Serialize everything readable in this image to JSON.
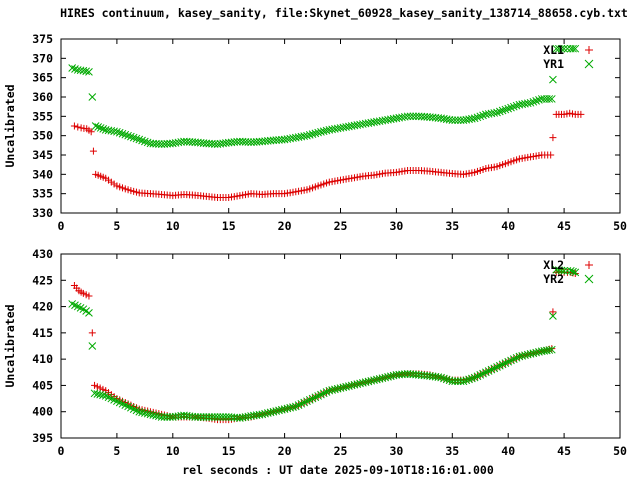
{
  "chart_data": {
    "type": "scatter",
    "title": "HIRES continuum, kasey_sanity, file:Skynet_60928_kasey_sanity_138714_88658.cyb.txt",
    "xlabel": "rel seconds : UT date 2025-09-10T18:16:01.000",
    "colors": {
      "series_red": "#dd0000",
      "series_green": "#00aa00"
    },
    "panels": [
      {
        "ylabel": "Uncalibrated",
        "xlim": [
          0,
          50
        ],
        "ylim": [
          330,
          375
        ],
        "xticks": [
          0,
          5,
          10,
          15,
          20,
          25,
          30,
          35,
          40,
          45,
          50
        ],
        "yticks": [
          330,
          335,
          340,
          345,
          350,
          355,
          360,
          365,
          370,
          375
        ],
        "legend_position": "top-right",
        "series": [
          {
            "name": "XL1",
            "marker": "plus",
            "color": "#dd0000",
            "anchors": [
              [
                1.2,
                352.5
              ],
              [
                1.8,
                352
              ],
              [
                2.3,
                351.8
              ],
              [
                2.7,
                351
              ],
              [
                2.9,
                346
              ],
              [
                3.1,
                340
              ],
              [
                4,
                339
              ],
              [
                5,
                337
              ],
              [
                6,
                336
              ],
              [
                7,
                335.2
              ],
              [
                8,
                335
              ],
              [
                9,
                334.8
              ],
              [
                10,
                334.5
              ],
              [
                11,
                334.8
              ],
              [
                12,
                334.6
              ],
              [
                13,
                334.3
              ],
              [
                14,
                334
              ],
              [
                15,
                334
              ],
              [
                16,
                334.5
              ],
              [
                17,
                335
              ],
              [
                18,
                334.8
              ],
              [
                19,
                335
              ],
              [
                20,
                335
              ],
              [
                21,
                335.5
              ],
              [
                22,
                336
              ],
              [
                23,
                337
              ],
              [
                24,
                338
              ],
              [
                25,
                338.5
              ],
              [
                26,
                339
              ],
              [
                27,
                339.5
              ],
              [
                28,
                339.8
              ],
              [
                29,
                340.3
              ],
              [
                30,
                340.5
              ],
              [
                31,
                341
              ],
              [
                32,
                341
              ],
              [
                33,
                340.8
              ],
              [
                34,
                340.5
              ],
              [
                35,
                340.2
              ],
              [
                36,
                340
              ],
              [
                37,
                340.5
              ],
              [
                38,
                341.5
              ],
              [
                39,
                342
              ],
              [
                40,
                343
              ],
              [
                41,
                344
              ],
              [
                42,
                344.5
              ],
              [
                43,
                345
              ],
              [
                43.8,
                345
              ],
              [
                44,
                349.5
              ],
              [
                44.3,
                355.5
              ],
              [
                45,
                355.5
              ],
              [
                45.5,
                355.8
              ],
              [
                46,
                355.5
              ],
              [
                46.5,
                355.5
              ]
            ],
            "step": 0.25
          },
          {
            "name": "YR1",
            "marker": "cross",
            "color": "#00aa00",
            "anchors": [
              [
                1,
                367.5
              ],
              [
                1.5,
                367
              ],
              [
                2,
                366.8
              ],
              [
                2.5,
                366.5
              ],
              [
                2.8,
                360
              ],
              [
                3.1,
                352.5
              ],
              [
                4,
                351.5
              ],
              [
                5,
                351
              ],
              [
                6,
                350
              ],
              [
                7,
                349
              ],
              [
                8,
                348
              ],
              [
                9,
                347.8
              ],
              [
                10,
                348
              ],
              [
                11,
                348.5
              ],
              [
                12,
                348.3
              ],
              [
                13,
                348
              ],
              [
                14,
                347.8
              ],
              [
                15,
                348.2
              ],
              [
                16,
                348.5
              ],
              [
                17,
                348.3
              ],
              [
                18,
                348.5
              ],
              [
                19,
                348.8
              ],
              [
                20,
                349
              ],
              [
                21,
                349.5
              ],
              [
                22,
                350
              ],
              [
                23,
                350.8
              ],
              [
                24,
                351.5
              ],
              [
                25,
                352
              ],
              [
                26,
                352.5
              ],
              [
                27,
                353
              ],
              [
                28,
                353.5
              ],
              [
                29,
                354
              ],
              [
                30,
                354.5
              ],
              [
                31,
                355
              ],
              [
                32,
                355
              ],
              [
                33,
                354.8
              ],
              [
                34,
                354.5
              ],
              [
                35,
                354
              ],
              [
                36,
                354
              ],
              [
                37,
                354.5
              ],
              [
                38,
                355.5
              ],
              [
                39,
                356
              ],
              [
                40,
                357
              ],
              [
                41,
                358
              ],
              [
                42,
                358.5
              ],
              [
                43,
                359.5
              ],
              [
                43.9,
                359.5
              ],
              [
                44,
                364.5
              ],
              [
                44.3,
                372.5
              ],
              [
                45,
                372.5
              ],
              [
                45.6,
                372.5
              ],
              [
                46,
                372.5
              ]
            ],
            "step": 0.25
          }
        ]
      },
      {
        "ylabel": "Uncalibrated",
        "xlim": [
          0,
          50
        ],
        "ylim": [
          395,
          430
        ],
        "xticks": [
          0,
          5,
          10,
          15,
          20,
          25,
          30,
          35,
          40,
          45,
          50
        ],
        "yticks": [
          395,
          400,
          405,
          410,
          415,
          420,
          425,
          430
        ],
        "legend_position": "top-right",
        "series": [
          {
            "name": "XL2",
            "marker": "plus",
            "color": "#dd0000",
            "anchors": [
              [
                1.2,
                424
              ],
              [
                1.6,
                423
              ],
              [
                2,
                422.5
              ],
              [
                2.5,
                422
              ],
              [
                2.8,
                415
              ],
              [
                3,
                405
              ],
              [
                4,
                404
              ],
              [
                5,
                402.5
              ],
              [
                6,
                401.5
              ],
              [
                7,
                400.5
              ],
              [
                8,
                400
              ],
              [
                9,
                399.5
              ],
              [
                10,
                399
              ],
              [
                11,
                399
              ],
              [
                12,
                399
              ],
              [
                13,
                398.8
              ],
              [
                14,
                398.5
              ],
              [
                15,
                398.5
              ],
              [
                16,
                398.8
              ],
              [
                17,
                399
              ],
              [
                18,
                399.5
              ],
              [
                19,
                400
              ],
              [
                20,
                400.5
              ],
              [
                21,
                401
              ],
              [
                22,
                402
              ],
              [
                23,
                403
              ],
              [
                24,
                404
              ],
              [
                25,
                404.5
              ],
              [
                26,
                405
              ],
              [
                27,
                405.5
              ],
              [
                28,
                406
              ],
              [
                29,
                406.5
              ],
              [
                30,
                407
              ],
              [
                31,
                407.2
              ],
              [
                32,
                407.2
              ],
              [
                33,
                407
              ],
              [
                34,
                406.5
              ],
              [
                35,
                406
              ],
              [
                36,
                406
              ],
              [
                37,
                406.5
              ],
              [
                38,
                407.5
              ],
              [
                39,
                408.5
              ],
              [
                40,
                409.5
              ],
              [
                41,
                410.5
              ],
              [
                42,
                411
              ],
              [
                43,
                411.5
              ],
              [
                43.9,
                412
              ],
              [
                44,
                419
              ],
              [
                44.3,
                426.5
              ],
              [
                45,
                426.5
              ],
              [
                45.6,
                426.5
              ],
              [
                46,
                426.3
              ]
            ],
            "step": 0.25
          },
          {
            "name": "YR2",
            "marker": "cross",
            "color": "#00aa00",
            "anchors": [
              [
                1,
                420.5
              ],
              [
                1.5,
                420
              ],
              [
                2,
                419.5
              ],
              [
                2.5,
                418.8
              ],
              [
                2.8,
                412.5
              ],
              [
                3,
                403.5
              ],
              [
                4,
                403
              ],
              [
                5,
                402
              ],
              [
                6,
                401
              ],
              [
                7,
                400
              ],
              [
                8,
                399.5
              ],
              [
                9,
                399
              ],
              [
                10,
                399
              ],
              [
                11,
                399.3
              ],
              [
                12,
                399
              ],
              [
                13,
                399
              ],
              [
                14,
                399
              ],
              [
                15,
                399
              ],
              [
                16,
                398.8
              ],
              [
                17,
                399.2
              ],
              [
                18,
                399.5
              ],
              [
                19,
                400
              ],
              [
                20,
                400.5
              ],
              [
                21,
                401
              ],
              [
                22,
                402
              ],
              [
                23,
                403
              ],
              [
                24,
                404
              ],
              [
                25,
                404.5
              ],
              [
                26,
                405
              ],
              [
                27,
                405.5
              ],
              [
                28,
                406
              ],
              [
                29,
                406.5
              ],
              [
                30,
                407
              ],
              [
                31,
                407.2
              ],
              [
                32,
                407
              ],
              [
                33,
                406.8
              ],
              [
                34,
                406.5
              ],
              [
                35,
                405.8
              ],
              [
                36,
                405.8
              ],
              [
                37,
                406.5
              ],
              [
                38,
                407.5
              ],
              [
                39,
                408.5
              ],
              [
                40,
                409.5
              ],
              [
                41,
                410.5
              ],
              [
                42,
                411
              ],
              [
                43,
                411.5
              ],
              [
                43.9,
                411.8
              ],
              [
                44,
                418.2
              ],
              [
                44.3,
                427
              ],
              [
                45,
                426.8
              ],
              [
                45.6,
                426.8
              ],
              [
                46,
                426.5
              ]
            ],
            "step": 0.25
          }
        ]
      }
    ]
  }
}
